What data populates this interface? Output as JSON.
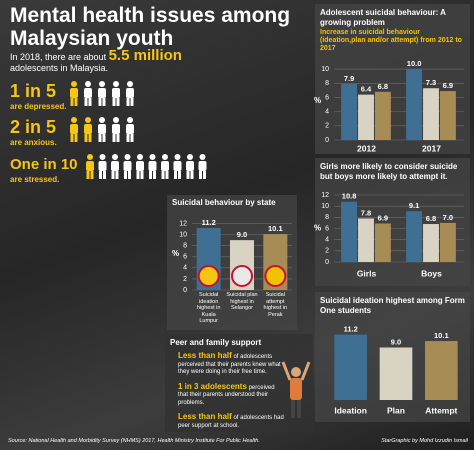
{
  "header": {
    "title": "Mental health issues among Malaysian youth",
    "intro": {
      "before": "In 2018, there are about",
      "highlight": "5.5 million",
      "after": "adolescents in Malaysia."
    }
  },
  "stats": [
    {
      "ratio": "1 in 5",
      "desc": "are depressed.",
      "highlighted": 1,
      "total": 5
    },
    {
      "ratio": "2 in 5",
      "desc": "are anxious.",
      "highlighted": 2,
      "total": 5
    },
    {
      "ratio": "One in 10",
      "desc": "are stressed.",
      "highlighted": 1,
      "total": 10
    }
  ],
  "chart_data": [
    {
      "type": "bar",
      "title": "Adolescent suicidal behaviour: A growing problem",
      "subtitle": "Increase in suicidal behaviour (ideation,plan and/or attempt) from 2012 to 2017",
      "ylabel": "%",
      "categories": [
        "2012",
        "2017"
      ],
      "series": [
        {
          "color": "#3f6f93",
          "values": [
            7.9,
            10
          ],
          "value_labels": [
            "7.9",
            "10.0"
          ]
        },
        {
          "color": "#d9d3c3",
          "values": [
            6.4,
            7.3
          ]
        },
        {
          "color": "#a88c55",
          "values": [
            6.8,
            6.9
          ]
        }
      ],
      "ylim": [
        0,
        11
      ],
      "yticks": [
        0,
        2,
        4,
        6,
        8,
        10
      ],
      "grid": true
    },
    {
      "type": "bar",
      "title": "Girls more likely to consider suicide but boys more likely to attempt it.",
      "ylabel": "%",
      "categories": [
        "Girls",
        "Boys"
      ],
      "series": [
        {
          "color": "#3f6f93",
          "values": [
            10.8,
            9.1
          ]
        },
        {
          "color": "#d9d3c3",
          "values": [
            7.8,
            6.8
          ]
        },
        {
          "color": "#a88c55",
          "values": [
            6.9,
            7
          ],
          "value_labels": [
            "6.9",
            "7.0"
          ]
        }
      ],
      "ylim": [
        0,
        12
      ],
      "yticks": [
        0,
        2,
        4,
        6,
        8,
        10,
        12
      ],
      "grid": true
    },
    {
      "type": "bar",
      "title": "Suicidal behaviour by state",
      "ylabel": "%",
      "categories": [
        "Suicidal ideation highest in Kuala Lumpur",
        "Suicidal plan highest in Selangor",
        "Suicidal attempt highest in Perak"
      ],
      "values": [
        11.2,
        9,
        10.1
      ],
      "value_labels": [
        "11.2",
        "9.0",
        "10.1"
      ],
      "colors": [
        "#3f6f93",
        "#d9d3c3",
        "#a88c55"
      ],
      "ylim": [
        0,
        13
      ],
      "yticks": [
        0,
        2,
        4,
        6,
        8,
        10,
        12
      ],
      "grid": true
    },
    {
      "type": "bar",
      "title": "Suicidal ideation highest among Form One students",
      "categories": [
        "Ideation",
        "Plan",
        "Attempt"
      ],
      "values": [
        11.2,
        9,
        10.1
      ],
      "value_labels": [
        "11.2",
        "9.0",
        "10.1"
      ],
      "colors": [
        "#3f6f93",
        "#d9d3c3",
        "#a88c55"
      ],
      "ylim": [
        0,
        12
      ],
      "grid": false
    }
  ],
  "peer": {
    "title": "Peer and family support",
    "items": [
      {
        "highlight": "Less than half",
        "text": "of adolescents perceived that their parents knew what they were doing in their free time."
      },
      {
        "highlight": "1 in 3 adolescents",
        "text": "perceived that their parents understood their problems."
      },
      {
        "highlight": "Less than half",
        "text": "of adolescents had peer support at school."
      }
    ]
  },
  "footer": {
    "source": "Source: National Health and Morbidity Survey (NHMS) 2017, Health Ministry Institute For Public Health.",
    "credit": "StarGraphic by Mohd Izzudin Ismail"
  }
}
